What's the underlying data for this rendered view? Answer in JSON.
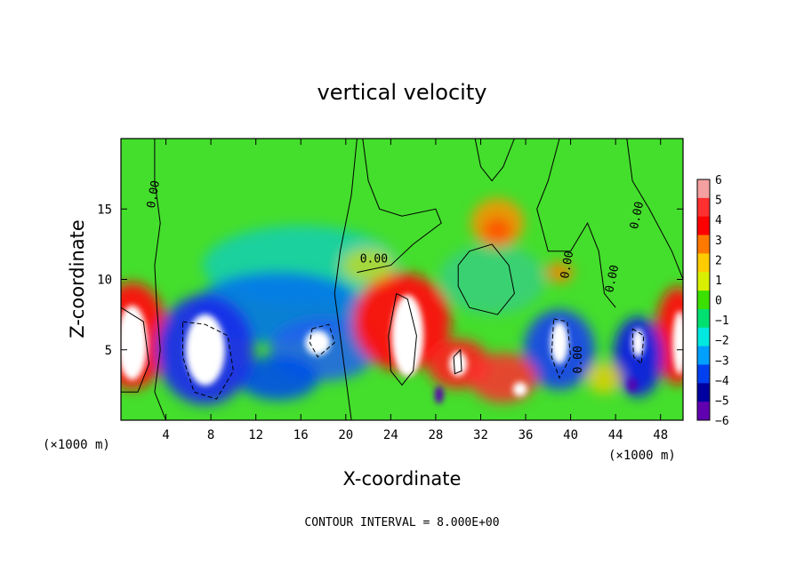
{
  "chart_data": {
    "type": "heatmap",
    "title": "vertical velocity",
    "xlabel": "X-coordinate",
    "ylabel": "Z-coordinate",
    "x_unit": "(×1000 m)",
    "x_unit_right": "(×1000 m)",
    "xlim": [
      0,
      50
    ],
    "ylim": [
      0,
      20
    ],
    "x_ticks": [
      4,
      8,
      12,
      16,
      20,
      24,
      28,
      32,
      36,
      40,
      44,
      48
    ],
    "y_ticks": [
      5,
      10,
      15
    ],
    "colorbar": {
      "levels": [
        6,
        5,
        4,
        3,
        2,
        1,
        0,
        -1,
        -2,
        -3,
        -4,
        -5,
        -6
      ],
      "colors": [
        "#f4a0a0",
        "#ff3030",
        "#ff0000",
        "#ff7800",
        "#ffcc00",
        "#d8f000",
        "#3ce000",
        "#00e070",
        "#00e8e0",
        "#00a0ff",
        "#0040f0",
        "#0000a0",
        "#6000b0"
      ]
    },
    "contour_labels": [
      "0.00",
      "0.00",
      "0.00",
      "0.00",
      "0.00",
      "0.00"
    ],
    "footer": "CONTOUR INTERVAL = 8.000E+00"
  }
}
